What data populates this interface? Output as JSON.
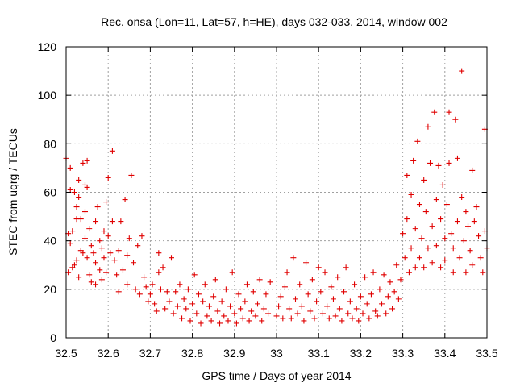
{
  "chart_data": {
    "type": "scatter",
    "title": "Rec. onsa (Lon=11, Lat=57, h=HE), days 032-033, 2014, window 002",
    "xlabel": "GPS time / Days of year 2014",
    "ylabel": "STEC from uqrg / TECUs",
    "xlim": [
      32.5,
      33.5
    ],
    "ylim": [
      0,
      120
    ],
    "x_ticks": [
      "32.5",
      "32.6",
      "32.7",
      "32.8",
      "32.9",
      "33",
      "33.1",
      "33.2",
      "33.3",
      "33.4",
      "33.5"
    ],
    "y_ticks": [
      "0",
      "20",
      "40",
      "60",
      "80",
      "100",
      "120"
    ],
    "grid": true,
    "marker": "+",
    "color": "#e00000",
    "series": [
      {
        "points": [
          [
            32.5,
            74
          ],
          [
            32.505,
            43
          ],
          [
            32.505,
            27
          ],
          [
            32.51,
            70
          ],
          [
            32.51,
            61
          ],
          [
            32.51,
            39
          ],
          [
            32.515,
            44
          ],
          [
            32.515,
            29
          ],
          [
            32.52,
            60
          ],
          [
            32.52,
            30
          ],
          [
            32.525,
            54
          ],
          [
            32.525,
            49
          ],
          [
            32.525,
            32
          ],
          [
            32.53,
            65
          ],
          [
            32.53,
            58
          ],
          [
            32.53,
            25
          ],
          [
            32.535,
            49
          ],
          [
            32.535,
            36
          ],
          [
            32.54,
            72
          ],
          [
            32.54,
            35
          ],
          [
            32.545,
            63
          ],
          [
            32.545,
            52
          ],
          [
            32.545,
            41
          ],
          [
            32.55,
            73
          ],
          [
            32.55,
            62
          ],
          [
            32.55,
            33
          ],
          [
            32.555,
            45
          ],
          [
            32.555,
            26
          ],
          [
            32.56,
            38
          ],
          [
            32.56,
            23
          ],
          [
            32.565,
            35
          ],
          [
            32.57,
            48
          ],
          [
            32.57,
            31
          ],
          [
            32.57,
            22
          ],
          [
            32.575,
            54
          ],
          [
            32.58,
            40
          ],
          [
            32.58,
            28
          ],
          [
            32.585,
            37
          ],
          [
            32.585,
            24
          ],
          [
            32.59,
            44
          ],
          [
            32.59,
            33
          ],
          [
            32.595,
            56
          ],
          [
            32.595,
            27
          ],
          [
            32.6,
            66
          ],
          [
            32.6,
            42
          ],
          [
            32.605,
            35
          ],
          [
            32.61,
            77
          ],
          [
            32.61,
            48
          ],
          [
            32.615,
            32
          ],
          [
            32.62,
            26
          ],
          [
            32.625,
            36
          ],
          [
            32.625,
            19
          ],
          [
            32.63,
            48
          ],
          [
            32.635,
            28
          ],
          [
            32.64,
            57
          ],
          [
            32.645,
            34
          ],
          [
            32.645,
            22
          ],
          [
            32.65,
            41
          ],
          [
            32.655,
            67
          ],
          [
            32.66,
            31
          ],
          [
            32.665,
            20
          ],
          [
            32.67,
            38
          ],
          [
            32.675,
            18
          ],
          [
            32.68,
            42
          ],
          [
            32.685,
            25
          ],
          [
            32.69,
            21
          ],
          [
            32.695,
            15
          ],
          [
            32.7,
            18
          ],
          [
            32.705,
            22
          ],
          [
            32.71,
            14
          ],
          [
            32.715,
            11
          ],
          [
            32.72,
            27
          ],
          [
            32.72,
            35
          ],
          [
            32.725,
            20
          ],
          [
            32.73,
            29
          ],
          [
            32.735,
            12
          ],
          [
            32.74,
            19
          ],
          [
            32.745,
            15
          ],
          [
            32.75,
            33
          ],
          [
            32.755,
            10
          ],
          [
            32.76,
            19
          ],
          [
            32.765,
            13
          ],
          [
            32.77,
            22
          ],
          [
            32.775,
            8
          ],
          [
            32.78,
            16
          ],
          [
            32.785,
            12
          ],
          [
            32.79,
            20
          ],
          [
            32.795,
            7
          ],
          [
            32.8,
            14
          ],
          [
            32.805,
            26
          ],
          [
            32.81,
            10
          ],
          [
            32.815,
            18
          ],
          [
            32.82,
            6
          ],
          [
            32.825,
            15
          ],
          [
            32.83,
            22
          ],
          [
            32.835,
            9
          ],
          [
            32.84,
            13
          ],
          [
            32.845,
            7
          ],
          [
            32.85,
            17
          ],
          [
            32.855,
            24
          ],
          [
            32.86,
            11
          ],
          [
            32.865,
            6
          ],
          [
            32.87,
            15
          ],
          [
            32.875,
            9
          ],
          [
            32.88,
            20
          ],
          [
            32.885,
            7
          ],
          [
            32.89,
            13
          ],
          [
            32.895,
            27
          ],
          [
            32.9,
            10
          ],
          [
            32.905,
            6
          ],
          [
            32.91,
            18
          ],
          [
            32.915,
            12
          ],
          [
            32.92,
            8
          ],
          [
            32.925,
            15
          ],
          [
            32.93,
            22
          ],
          [
            32.935,
            7
          ],
          [
            32.94,
            11
          ],
          [
            32.945,
            19
          ],
          [
            32.95,
            9
          ],
          [
            32.955,
            14
          ],
          [
            32.96,
            24
          ],
          [
            32.965,
            7
          ],
          [
            32.97,
            12
          ],
          [
            32.975,
            18
          ],
          [
            32.98,
            10
          ],
          [
            32.985,
            23
          ],
          [
            33.0,
            9
          ],
          [
            33.005,
            13
          ],
          [
            33.01,
            17
          ],
          [
            33.015,
            8
          ],
          [
            33.02,
            21
          ],
          [
            33.025,
            27
          ],
          [
            33.03,
            12
          ],
          [
            33.035,
            8
          ],
          [
            33.04,
            33
          ],
          [
            33.045,
            16
          ],
          [
            33.05,
            10
          ],
          [
            33.055,
            22
          ],
          [
            33.06,
            13
          ],
          [
            33.065,
            7
          ],
          [
            33.07,
            31
          ],
          [
            33.075,
            18
          ],
          [
            33.08,
            11
          ],
          [
            33.085,
            24
          ],
          [
            33.09,
            8
          ],
          [
            33.095,
            15
          ],
          [
            33.1,
            29
          ],
          [
            33.105,
            19
          ],
          [
            33.11,
            10
          ],
          [
            33.115,
            27
          ],
          [
            33.12,
            13
          ],
          [
            33.125,
            8
          ],
          [
            33.13,
            21
          ],
          [
            33.135,
            16
          ],
          [
            33.14,
            9
          ],
          [
            33.145,
            25
          ],
          [
            33.15,
            12
          ],
          [
            33.155,
            7
          ],
          [
            33.16,
            19
          ],
          [
            33.165,
            29
          ],
          [
            33.17,
            10
          ],
          [
            33.175,
            15
          ],
          [
            33.18,
            8
          ],
          [
            33.185,
            22
          ],
          [
            33.19,
            12
          ],
          [
            33.195,
            7
          ],
          [
            33.2,
            17
          ],
          [
            33.205,
            10
          ],
          [
            33.21,
            25
          ],
          [
            33.215,
            14
          ],
          [
            33.22,
            8
          ],
          [
            33.225,
            18
          ],
          [
            33.23,
            27
          ],
          [
            33.235,
            11
          ],
          [
            33.24,
            9
          ],
          [
            33.245,
            20
          ],
          [
            33.25,
            14
          ],
          [
            33.255,
            26
          ],
          [
            33.26,
            10
          ],
          [
            33.265,
            17
          ],
          [
            33.27,
            23
          ],
          [
            33.275,
            12
          ],
          [
            33.28,
            19
          ],
          [
            33.285,
            30
          ],
          [
            33.29,
            16
          ],
          [
            33.295,
            24
          ],
          [
            33.3,
            43
          ],
          [
            33.305,
            33
          ],
          [
            33.31,
            67
          ],
          [
            33.31,
            49
          ],
          [
            33.315,
            27
          ],
          [
            33.32,
            59
          ],
          [
            33.32,
            37
          ],
          [
            33.325,
            73
          ],
          [
            33.33,
            45
          ],
          [
            33.33,
            29
          ],
          [
            33.335,
            81
          ],
          [
            33.34,
            55
          ],
          [
            33.34,
            33
          ],
          [
            33.345,
            41
          ],
          [
            33.35,
            65
          ],
          [
            33.35,
            29
          ],
          [
            33.355,
            52
          ],
          [
            33.36,
            87
          ],
          [
            33.36,
            37
          ],
          [
            33.365,
            72
          ],
          [
            33.37,
            46
          ],
          [
            33.37,
            31
          ],
          [
            33.375,
            93
          ],
          [
            33.38,
            57
          ],
          [
            33.38,
            38
          ],
          [
            33.385,
            71
          ],
          [
            33.39,
            49
          ],
          [
            33.39,
            29
          ],
          [
            33.395,
            63
          ],
          [
            33.4,
            41
          ],
          [
            33.4,
            32
          ],
          [
            33.405,
            55
          ],
          [
            33.41,
            93
          ],
          [
            33.41,
            72
          ],
          [
            33.415,
            43
          ],
          [
            33.42,
            37
          ],
          [
            33.42,
            27
          ],
          [
            33.425,
            90
          ],
          [
            33.43,
            74
          ],
          [
            33.43,
            48
          ],
          [
            33.435,
            33
          ],
          [
            33.44,
            110
          ],
          [
            33.44,
            58
          ],
          [
            33.445,
            40
          ],
          [
            33.45,
            52
          ],
          [
            33.45,
            27
          ],
          [
            33.455,
            46
          ],
          [
            33.46,
            36
          ],
          [
            33.465,
            69
          ],
          [
            33.465,
            30
          ],
          [
            33.47,
            48
          ],
          [
            33.475,
            54
          ],
          [
            33.48,
            42
          ],
          [
            33.485,
            33
          ],
          [
            33.49,
            27
          ],
          [
            33.495,
            86
          ],
          [
            33.495,
            44
          ],
          [
            33.5,
            37
          ]
        ]
      }
    ]
  }
}
